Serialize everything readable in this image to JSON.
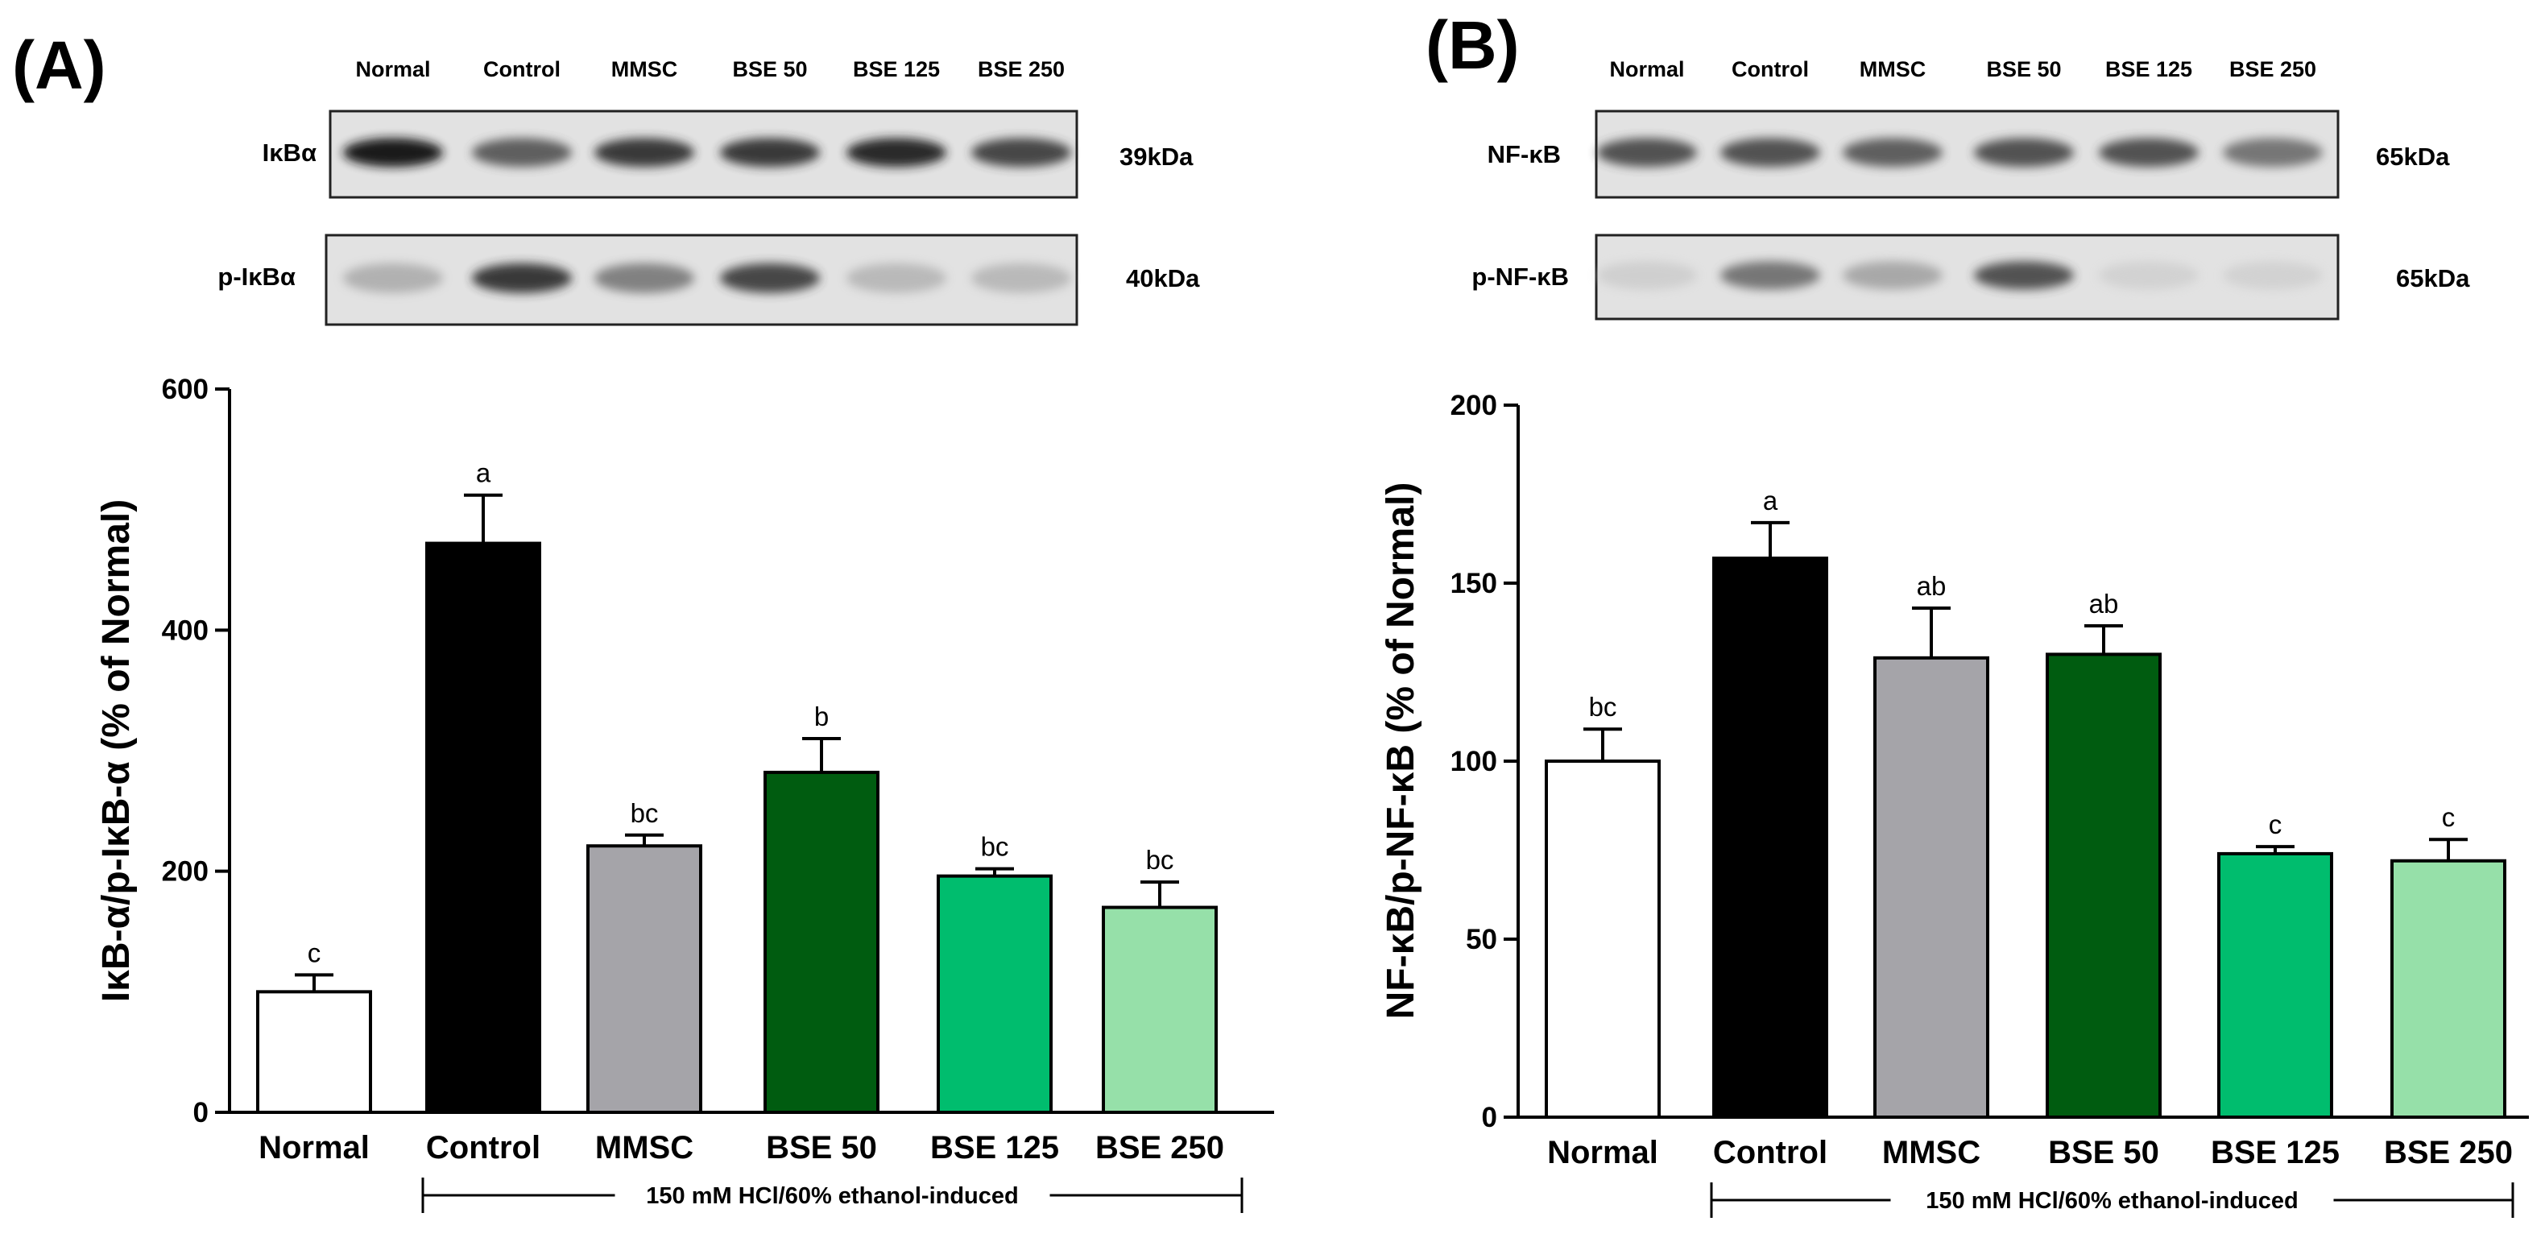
{
  "panels": [
    {
      "panel_label": "(A)",
      "blot": {
        "lanes": [
          "Normal",
          "Control",
          "MMSC",
          "BSE 50",
          "BSE 125",
          "BSE 250"
        ],
        "rows": [
          {
            "label": "IκBα",
            "kda": "39kDa",
            "intensities": [
              0.95,
              0.7,
              0.85,
              0.85,
              0.9,
              0.8
            ]
          },
          {
            "label": "p-IκBα",
            "kda": "40kDa",
            "intensities": [
              0.3,
              0.85,
              0.55,
              0.8,
              0.25,
              0.25
            ]
          }
        ]
      },
      "chart_data": {
        "type": "bar",
        "categories": [
          "Normal",
          "Control",
          "MMSC",
          "BSE 50",
          "BSE 125",
          "BSE 250"
        ],
        "values": [
          100,
          472,
          221,
          282,
          196,
          170
        ],
        "errors": [
          14,
          40,
          9,
          28,
          6,
          21
        ],
        "significance": [
          "c",
          "a",
          "bc",
          "b",
          "bc",
          "bc"
        ],
        "colors": [
          "#ffffff",
          "#000000",
          "#a5a4a9",
          "#005c10",
          "#00bd6e",
          "#96e0a9"
        ],
        "ylabel": "IκB-α/p-IκB-α (% of  Normal)",
        "ylim": [
          0,
          600
        ],
        "yticks": [
          0,
          200,
          400,
          600
        ],
        "bracket_label": "150 mM HCl/60% ethanol-induced"
      }
    },
    {
      "panel_label": "(B)",
      "blot": {
        "lanes": [
          "Normal",
          "Control",
          "MMSC",
          "BSE 50",
          "BSE 125",
          "BSE 250"
        ],
        "rows": [
          {
            "label": "NF-κB",
            "kda": "65kDa",
            "intensities": [
              0.75,
              0.75,
              0.7,
              0.75,
              0.75,
              0.6
            ]
          },
          {
            "label": "p-NF-κB",
            "kda": "65kDa",
            "intensities": [
              0.1,
              0.6,
              0.35,
              0.75,
              0.08,
              0.08
            ]
          }
        ]
      },
      "chart_data": {
        "type": "bar",
        "categories": [
          "Normal",
          "Control",
          "MMSC",
          "BSE 50",
          "BSE 125",
          "BSE 250"
        ],
        "values": [
          100,
          157,
          129,
          130,
          74,
          72
        ],
        "errors": [
          9,
          10,
          14,
          8,
          2,
          6
        ],
        "significance": [
          "bc",
          "a",
          "ab",
          "ab",
          "c",
          "c"
        ],
        "colors": [
          "#ffffff",
          "#000000",
          "#a5a4a9",
          "#005c10",
          "#00bd6e",
          "#96e0a9"
        ],
        "ylabel": "NF-κB/p-NF-κB (% of  Normal)",
        "ylim": [
          0,
          200
        ],
        "yticks": [
          0,
          50,
          100,
          150,
          200
        ],
        "bracket_label": "150 mM HCl/60% ethanol-induced"
      }
    }
  ]
}
